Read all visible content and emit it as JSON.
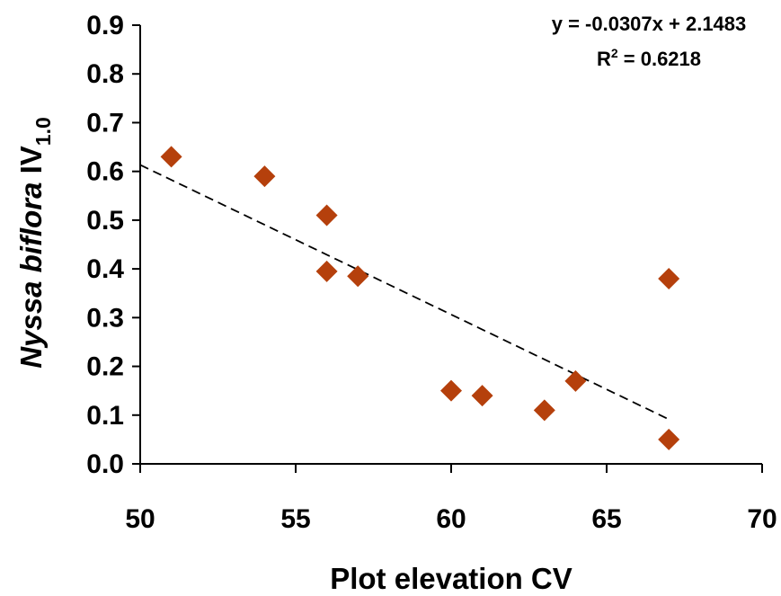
{
  "chart_data": {
    "type": "scatter",
    "xlabel": "Plot elevation CV",
    "ylabel": {
      "italic": "Nyssa biflora",
      "main": " IV",
      "subscript": "1.0"
    },
    "xlim": [
      50,
      70
    ],
    "ylim": [
      0,
      0.9
    ],
    "xticks": [
      "50",
      "55",
      "60",
      "65",
      "70"
    ],
    "yticks": [
      "0.0",
      "0.1",
      "0.2",
      "0.3",
      "0.4",
      "0.5",
      "0.6",
      "0.7",
      "0.8",
      "0.9"
    ],
    "grid": false,
    "points": [
      {
        "x": 51,
        "y": 0.63
      },
      {
        "x": 54,
        "y": 0.59
      },
      {
        "x": 56,
        "y": 0.51
      },
      {
        "x": 56,
        "y": 0.395
      },
      {
        "x": 57,
        "y": 0.385
      },
      {
        "x": 60,
        "y": 0.15
      },
      {
        "x": 61,
        "y": 0.14
      },
      {
        "x": 63,
        "y": 0.11
      },
      {
        "x": 64,
        "y": 0.17
      },
      {
        "x": 67,
        "y": 0.38
      },
      {
        "x": 67,
        "y": 0.05
      }
    ],
    "trendline": {
      "slope": -0.0307,
      "intercept": 2.1483,
      "x_range": [
        50,
        67
      ],
      "style": "dashed"
    },
    "annotations": {
      "equation": "y = -0.0307x + 2.1483",
      "r2_prefix": "R",
      "r2_sup": "2",
      "r2_suffix": " = 0.6218"
    },
    "marker_color": "#b5400c"
  }
}
